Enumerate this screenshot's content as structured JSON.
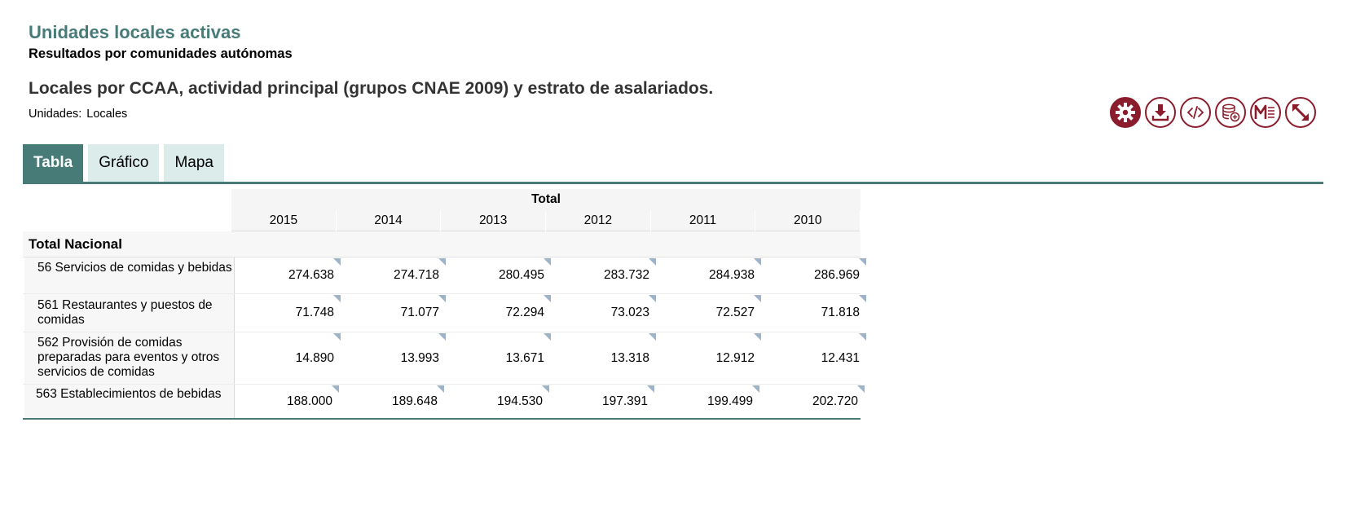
{
  "header": {
    "title": "Unidades locales activas",
    "subtitle": "Resultados por comunidades autónomas",
    "table_title": "Locales por CCAA, actividad principal (grupos CNAE 2009) y estrato de asalariados.",
    "units_label": "Unidades:",
    "units_value": "Locales"
  },
  "toolbar": {
    "buttons": [
      {
        "icon": "gear-icon"
      },
      {
        "icon": "download-icon"
      },
      {
        "icon": "code-icon"
      },
      {
        "icon": "database-add-icon"
      },
      {
        "icon": "metadata-icon"
      },
      {
        "icon": "expand-icon"
      }
    ],
    "accent_color": "#8b1c2c"
  },
  "tabs": [
    {
      "label": "Tabla",
      "active": true
    },
    {
      "label": "Gráfico",
      "active": false
    },
    {
      "label": "Mapa",
      "active": false
    }
  ],
  "table": {
    "column_group": "Total",
    "years": [
      "2015",
      "2014",
      "2013",
      "2012",
      "2011",
      "2010"
    ],
    "section": "Total Nacional",
    "rows": [
      {
        "label": "56 Servicios de comidas y bebidas",
        "values": [
          "274.638",
          "274.718",
          "280.495",
          "283.732",
          "284.938",
          "286.969"
        ]
      },
      {
        "label": "561 Restaurantes y puestos de comidas",
        "values": [
          "71.748",
          "71.077",
          "72.294",
          "73.023",
          "72.527",
          "71.818"
        ]
      },
      {
        "label": "562 Provisión de comidas preparadas para eventos y otros servicios de comidas",
        "values": [
          "14.890",
          "13.993",
          "13.671",
          "13.318",
          "12.912",
          "12.431"
        ]
      },
      {
        "label": "563 Establecimientos de bebidas",
        "values": [
          "188.000",
          "189.648",
          "194.530",
          "197.391",
          "199.499",
          "202.720"
        ]
      }
    ]
  },
  "colors": {
    "brand_green": "#467b78",
    "tab_inactive": "#dcecea",
    "note_marker": "#9fb3c8"
  }
}
